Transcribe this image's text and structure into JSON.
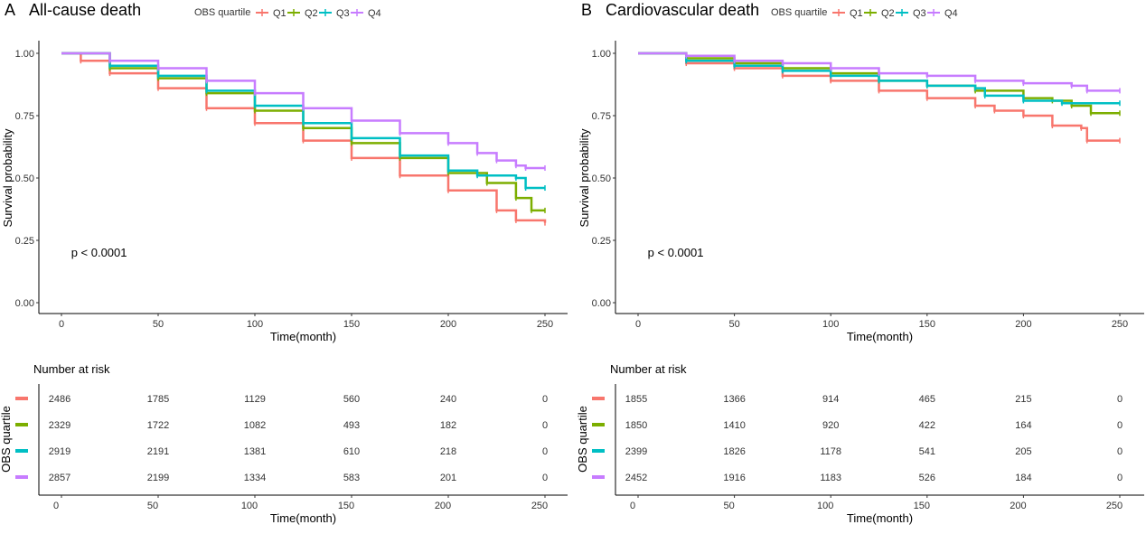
{
  "colors": {
    "Q1": "#F8766D",
    "Q2": "#7CAE00",
    "Q3": "#00BFC4",
    "Q4": "#C77CFF"
  },
  "chart_data": [
    {
      "type": "line",
      "panel": "A",
      "title": "All-cause death",
      "legend_title": "OBS quartile",
      "legend": "top",
      "xlabel": "Time(month)",
      "ylabel": "Survival probability",
      "xlim": [
        0,
        250
      ],
      "ylim": [
        0,
        1
      ],
      "xticks": [
        "0",
        "50",
        "100",
        "150",
        "200",
        "250"
      ],
      "yticks": [
        "0.00",
        "0.25",
        "0.50",
        "0.75",
        "1.00"
      ],
      "annotation": "p < 0.0001",
      "series": [
        {
          "name": "Q1",
          "x": [
            0,
            10,
            25,
            50,
            75,
            100,
            125,
            150,
            175,
            200,
            225,
            235,
            250
          ],
          "y": [
            1,
            0.97,
            0.92,
            0.86,
            0.78,
            0.72,
            0.65,
            0.58,
            0.51,
            0.45,
            0.37,
            0.33,
            0.32
          ]
        },
        {
          "name": "Q2",
          "x": [
            0,
            25,
            50,
            75,
            100,
            125,
            150,
            175,
            200,
            220,
            235,
            243,
            250
          ],
          "y": [
            1,
            0.94,
            0.9,
            0.84,
            0.77,
            0.7,
            0.64,
            0.58,
            0.52,
            0.48,
            0.42,
            0.37,
            0.37
          ]
        },
        {
          "name": "Q3",
          "x": [
            0,
            25,
            50,
            75,
            100,
            125,
            150,
            175,
            200,
            215,
            235,
            240,
            250
          ],
          "y": [
            1,
            0.95,
            0.91,
            0.85,
            0.79,
            0.72,
            0.66,
            0.59,
            0.53,
            0.51,
            0.5,
            0.46,
            0.46
          ]
        },
        {
          "name": "Q4",
          "x": [
            0,
            25,
            50,
            75,
            100,
            125,
            150,
            175,
            200,
            215,
            225,
            235,
            240,
            250
          ],
          "y": [
            1,
            0.97,
            0.94,
            0.89,
            0.84,
            0.78,
            0.73,
            0.68,
            0.64,
            0.6,
            0.57,
            0.55,
            0.54,
            0.54
          ]
        }
      ],
      "risk_table": {
        "title": "Number at risk",
        "ylabel": "OBS quartile",
        "xlabel": "Time(month)",
        "times": [
          "0",
          "50",
          "100",
          "150",
          "200",
          "250"
        ],
        "rows": [
          [
            "2486",
            "1785",
            "1129",
            "560",
            "240",
            "0"
          ],
          [
            "2329",
            "1722",
            "1082",
            "493",
            "182",
            "0"
          ],
          [
            "2919",
            "2191",
            "1381",
            "610",
            "218",
            "0"
          ],
          [
            "2857",
            "2199",
            "1334",
            "583",
            "201",
            "0"
          ]
        ]
      }
    },
    {
      "type": "line",
      "panel": "B",
      "title": "Cardiovascular death",
      "legend_title": "OBS quartile",
      "legend": "top",
      "xlabel": "Time(month)",
      "ylabel": "Survival probability",
      "xlim": [
        0,
        250
      ],
      "ylim": [
        0,
        1
      ],
      "xticks": [
        "0",
        "50",
        "100",
        "150",
        "200",
        "250"
      ],
      "yticks": [
        "0.00",
        "0.25",
        "0.50",
        "0.75",
        "1.00"
      ],
      "annotation": "p < 0.0001",
      "series": [
        {
          "name": "Q1",
          "x": [
            0,
            25,
            50,
            75,
            100,
            125,
            150,
            175,
            185,
            200,
            215,
            230,
            233,
            250
          ],
          "y": [
            1,
            0.96,
            0.94,
            0.91,
            0.89,
            0.85,
            0.82,
            0.79,
            0.77,
            0.75,
            0.71,
            0.7,
            0.65,
            0.65
          ]
        },
        {
          "name": "Q2",
          "x": [
            0,
            25,
            50,
            75,
            100,
            125,
            150,
            175,
            200,
            215,
            225,
            235,
            250
          ],
          "y": [
            1,
            0.98,
            0.96,
            0.94,
            0.92,
            0.89,
            0.87,
            0.85,
            0.82,
            0.81,
            0.79,
            0.76,
            0.76
          ]
        },
        {
          "name": "Q3",
          "x": [
            0,
            25,
            50,
            75,
            100,
            125,
            150,
            175,
            180,
            200,
            220,
            250
          ],
          "y": [
            1,
            0.97,
            0.95,
            0.93,
            0.91,
            0.89,
            0.87,
            0.86,
            0.83,
            0.81,
            0.8,
            0.8
          ]
        },
        {
          "name": "Q4",
          "x": [
            0,
            25,
            50,
            75,
            100,
            125,
            150,
            175,
            200,
            225,
            233,
            250
          ],
          "y": [
            1,
            0.99,
            0.97,
            0.96,
            0.94,
            0.92,
            0.91,
            0.89,
            0.88,
            0.87,
            0.85,
            0.85
          ]
        }
      ],
      "risk_table": {
        "title": "Number at risk",
        "ylabel": "OBS quartile",
        "xlabel": "Time(month)",
        "times": [
          "0",
          "50",
          "100",
          "150",
          "200",
          "250"
        ],
        "rows": [
          [
            "1855",
            "1366",
            "914",
            "465",
            "215",
            "0"
          ],
          [
            "1850",
            "1410",
            "920",
            "422",
            "164",
            "0"
          ],
          [
            "2399",
            "1826",
            "1178",
            "541",
            "205",
            "0"
          ],
          [
            "2452",
            "1916",
            "1183",
            "526",
            "184",
            "0"
          ]
        ]
      }
    }
  ]
}
